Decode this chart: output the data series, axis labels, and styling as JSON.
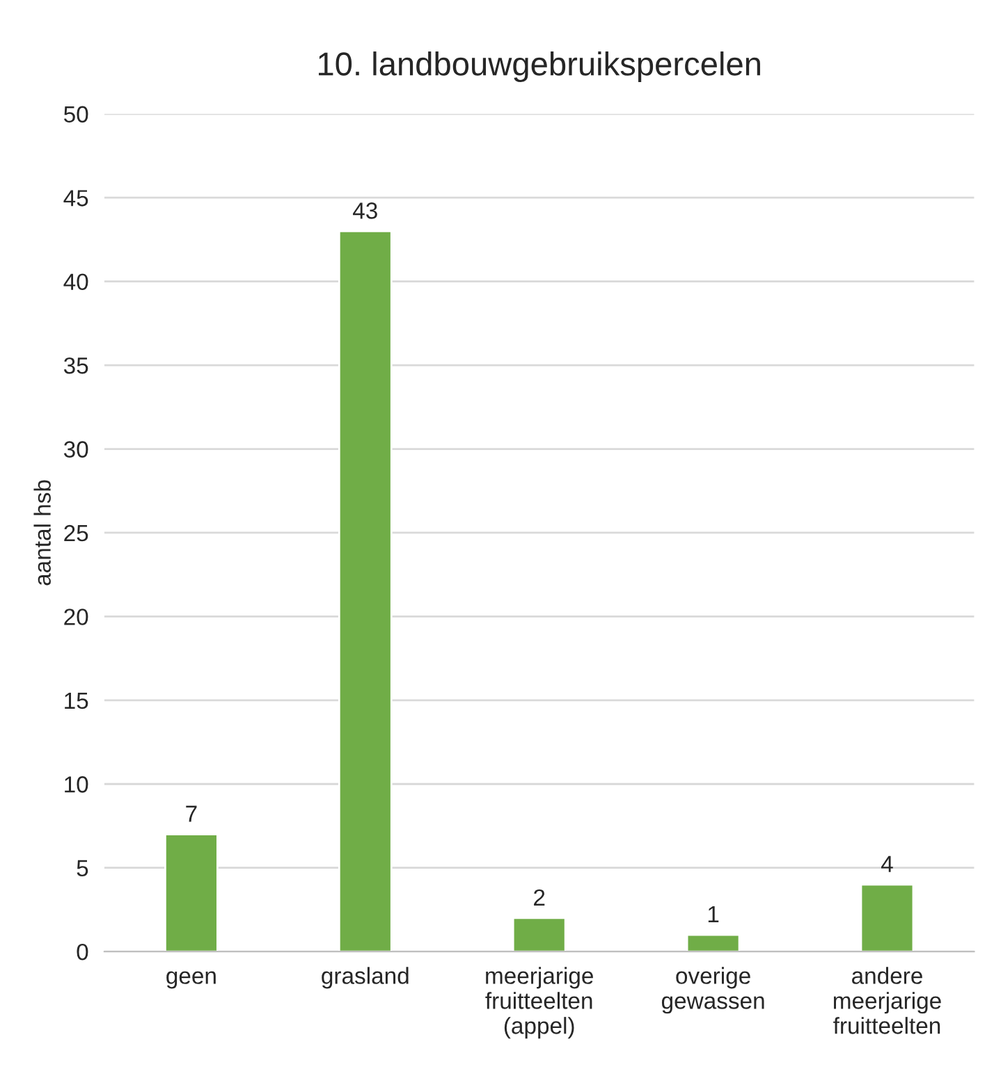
{
  "chart_data": {
    "type": "bar",
    "title": "10. landbouwgebruikspercelen",
    "ylabel": "aantal hsb",
    "categories": [
      "geen",
      "grasland",
      "meerjarige\nfruitteelten\n(appel)",
      "overige\ngewassen",
      "andere\nmeerjarige\nfruitteelten"
    ],
    "values": [
      7,
      43,
      2,
      1,
      4
    ],
    "color": "#70ad47",
    "ylim": [
      0,
      50
    ],
    "yticks": [
      0,
      5,
      10,
      15,
      20,
      25,
      30,
      35,
      40,
      45,
      50
    ],
    "grid": "y",
    "data_labels": true,
    "legend": false
  }
}
